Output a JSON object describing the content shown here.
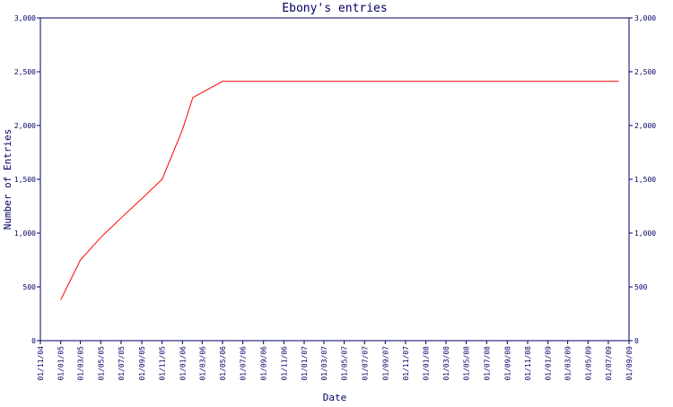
{
  "colors": {
    "axis": "#000066",
    "text": "#000066",
    "series": "#ff0000",
    "background": "#ffffff"
  },
  "chart_data": {
    "type": "line",
    "title": "Ebony's entries",
    "xlabel": "Date",
    "ylabel": "Number of Entries",
    "ylim": [
      0,
      3000
    ],
    "yticks": [
      0,
      500,
      1000,
      1500,
      2000,
      2500,
      3000
    ],
    "ytick_labels": [
      "0",
      "500",
      "1,000",
      "1,500",
      "2,000",
      "2,500",
      "3,000"
    ],
    "xlim": [
      "2004-11-01",
      "2009-09-01"
    ],
    "xtick_labels": [
      "01/11/04",
      "01/01/05",
      "01/03/05",
      "01/05/05",
      "01/07/05",
      "01/09/05",
      "01/11/05",
      "01/01/06",
      "01/03/06",
      "01/05/06",
      "01/07/06",
      "01/09/06",
      "01/11/06",
      "01/01/07",
      "01/03/07",
      "01/05/07",
      "01/07/07",
      "01/09/07",
      "01/11/07",
      "01/01/08",
      "01/03/08",
      "01/05/08",
      "01/07/08",
      "01/09/08",
      "01/11/08",
      "01/01/09",
      "01/03/09",
      "01/05/09",
      "01/07/09",
      "01/09/09"
    ],
    "grid": false,
    "series": [
      {
        "x": [
          "2005-01-01",
          "2005-03-01",
          "2005-05-01",
          "2005-07-01",
          "2005-09-01",
          "2005-11-01",
          "2006-01-01",
          "2006-02-01",
          "2006-05-01",
          "2009-08-01"
        ],
        "y": [
          380,
          750,
          960,
          1140,
          1320,
          1500,
          1960,
          2260,
          2410,
          2410
        ]
      }
    ]
  }
}
